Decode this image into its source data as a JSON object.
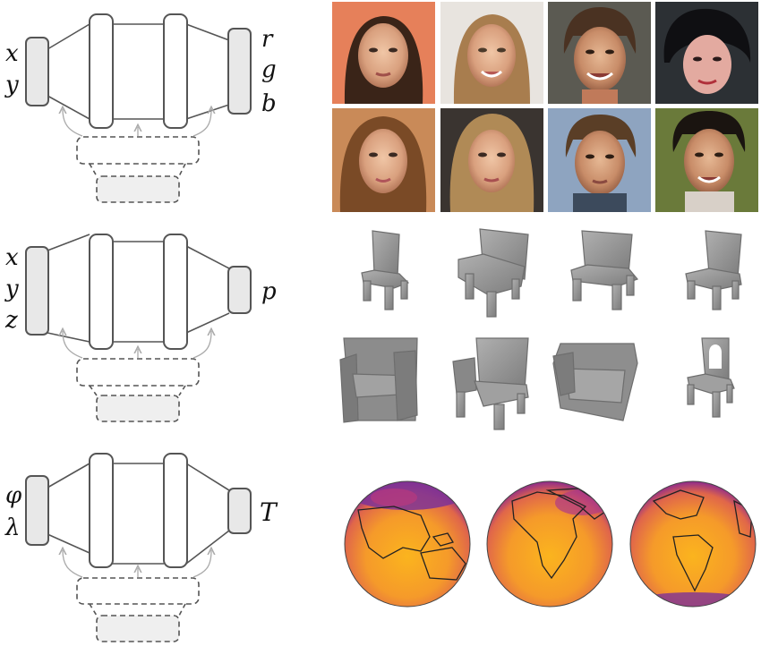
{
  "rows": [
    {
      "inputs": [
        "x",
        "y"
      ],
      "outputs": [
        "r",
        "g",
        "b"
      ]
    },
    {
      "inputs": [
        "x",
        "y",
        "z"
      ],
      "outputs": [
        "p"
      ]
    },
    {
      "inputs": [
        "φ",
        "λ"
      ],
      "outputs": [
        "T"
      ]
    }
  ],
  "colors": {
    "line": "#555555",
    "arrow": "#aaaaaa",
    "io_fill": "#e8e8e8",
    "chair": "#8f8f8f"
  },
  "icons": {
    "faces": "face-photo-icon",
    "chairs": "chair-shape-icon",
    "globes": "temperature-globe-icon"
  }
}
